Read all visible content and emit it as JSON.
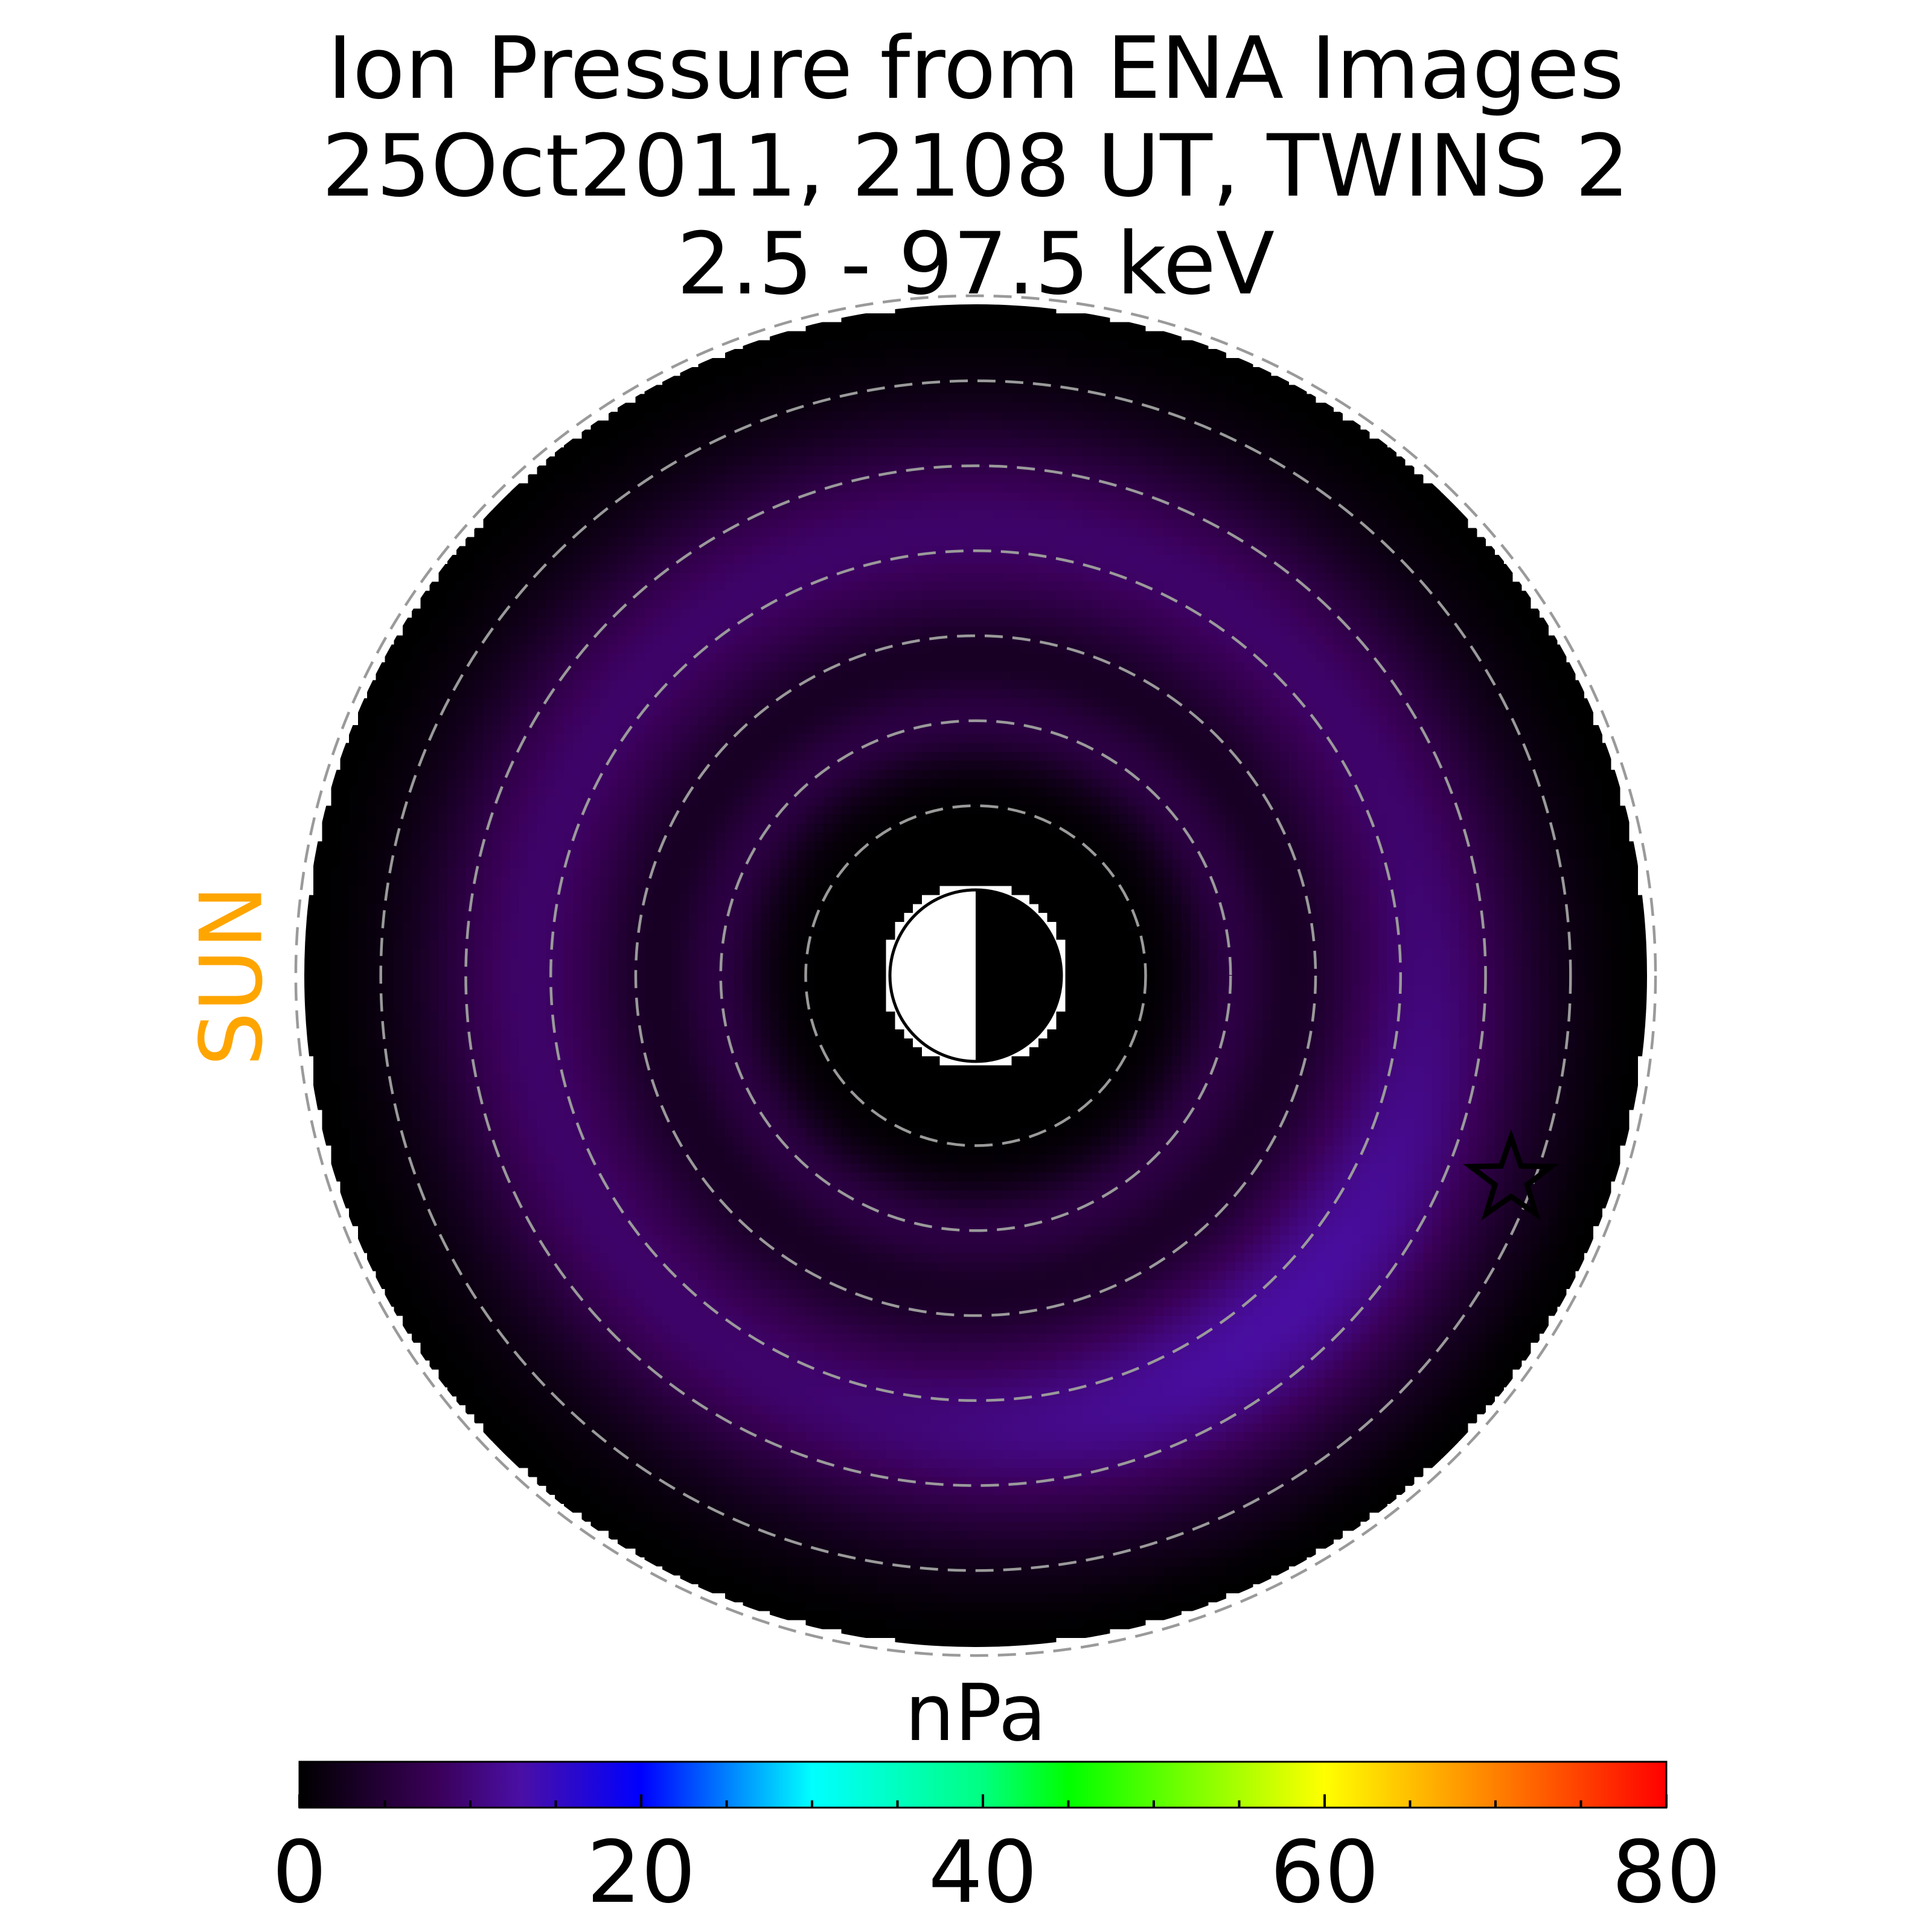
{
  "chart_data": {
    "type": "heatmap",
    "projection": "polar equatorial plane",
    "title": [
      "Ion Pressure from  ENA Images",
      "25Oct2011, 2108 UT,  TWINS 2",
      "2.5 - 97.5 keV"
    ],
    "sun_label": "SUN",
    "colorbar": {
      "label": "nPa",
      "range": [
        0,
        80
      ],
      "ticks": [
        0,
        20,
        40,
        60,
        80
      ],
      "minor_tick_step": 5,
      "colormap": [
        {
          "value": 0,
          "color": "#000000"
        },
        {
          "value": 8,
          "color": "#3a0058"
        },
        {
          "value": 13,
          "color": "#4a0fa6"
        },
        {
          "value": 20,
          "color": "#0000ff"
        },
        {
          "value": 30,
          "color": "#00ffff"
        },
        {
          "value": 40,
          "color": "#00ff80"
        },
        {
          "value": 45,
          "color": "#00ff00"
        },
        {
          "value": 60,
          "color": "#ffff00"
        },
        {
          "value": 70,
          "color": "#ff8000"
        },
        {
          "value": 80,
          "color": "#ff0000"
        }
      ]
    },
    "colors": {
      "sun_label": "#ffa500",
      "grid_circles": "#9a9a9a",
      "outside_disk": "#ffffff"
    },
    "radial_grid": {
      "spacing_re": 2,
      "count": 8,
      "style": "dashed"
    },
    "inner_boundary_re": 2.15,
    "outer_boundary_re": 15.8,
    "pressure_ring": {
      "peak_radius_re": 10.5,
      "peak_pressure_nPa": 9,
      "enhanced_sector": "post-midnight / dawn",
      "enhanced_peak_nPa": 13
    },
    "earth_symbol": "day side white, night side black",
    "satellite_marker": {
      "symbol": "star",
      "x_re": 12.6,
      "y_re": -4.8
    }
  }
}
